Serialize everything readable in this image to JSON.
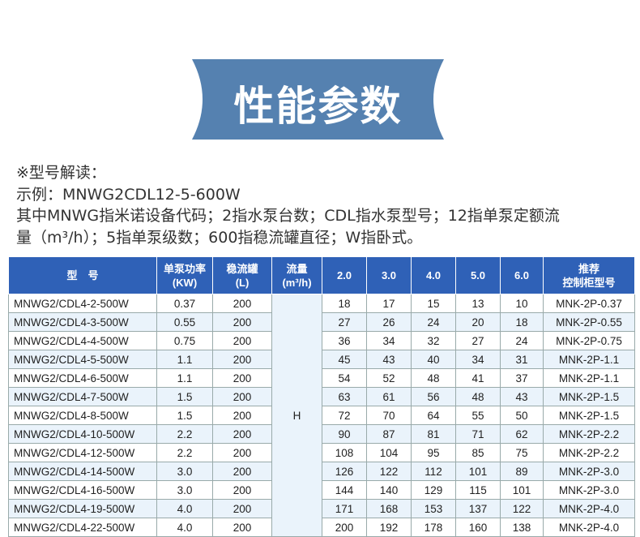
{
  "banner": {
    "title": "性能参数",
    "color": "#5581b0"
  },
  "description": {
    "lines": [
      "※型号解读：",
      "示例：MNWG2CDL12-5-600W",
      "其中MNWG指米诺设备代码；2指水泵台数；CDL指水泵型号；12指单泵定额流",
      "量（m³/h）；5指单泵级数；600指稳流罐直径；W指卧式。"
    ]
  },
  "table": {
    "header_color": "#2f61b7",
    "headers": {
      "model": "型　号",
      "power": "单泵功率",
      "power_unit": "(KW)",
      "tank": "稳流罐",
      "tank_unit": "(L)",
      "flow": "流量",
      "flow_unit": "(m³/h)",
      "f1": "2.0",
      "f2": "3.0",
      "f3": "4.0",
      "f4": "5.0",
      "f5": "6.0",
      "cab1": "推荐",
      "cab2": "控制柜型号"
    },
    "h_label": "H",
    "rows": [
      [
        "MNWG2/CDL4-2-500W",
        "0.37",
        "200",
        "18",
        "17",
        "15",
        "13",
        "10",
        "MNK-2P-0.37"
      ],
      [
        "MNWG2/CDL4-3-500W",
        "0.55",
        "200",
        "27",
        "26",
        "24",
        "20",
        "18",
        "MNK-2P-0.55"
      ],
      [
        "MNWG2/CDL4-4-500W",
        "0.75",
        "200",
        "36",
        "34",
        "32",
        "27",
        "24",
        "MNK-2P-0.75"
      ],
      [
        "MNWG2/CDL4-5-500W",
        "1.1",
        "200",
        "45",
        "43",
        "40",
        "34",
        "31",
        "MNK-2P-1.1"
      ],
      [
        "MNWG2/CDL4-6-500W",
        "1.1",
        "200",
        "54",
        "52",
        "48",
        "41",
        "37",
        "MNK-2P-1.1"
      ],
      [
        "MNWG2/CDL4-7-500W",
        "1.5",
        "200",
        "63",
        "61",
        "56",
        "48",
        "43",
        "MNK-2P-1.5"
      ],
      [
        "MNWG2/CDL4-8-500W",
        "1.5",
        "200",
        "72",
        "70",
        "64",
        "55",
        "50",
        "MNK-2P-1.5"
      ],
      [
        "MNWG2/CDL4-10-500W",
        "2.2",
        "200",
        "90",
        "87",
        "81",
        "71",
        "62",
        "MNK-2P-2.2"
      ],
      [
        "MNWG2/CDL4-12-500W",
        "2.2",
        "200",
        "108",
        "104",
        "95",
        "85",
        "75",
        "MNK-2P-2.2"
      ],
      [
        "MNWG2/CDL4-14-500W",
        "3.0",
        "200",
        "126",
        "122",
        "112",
        "101",
        "89",
        "MNK-2P-3.0"
      ],
      [
        "MNWG2/CDL4-16-500W",
        "3.0",
        "200",
        "144",
        "140",
        "129",
        "115",
        "101",
        "MNK-2P-3.0"
      ],
      [
        "MNWG2/CDL4-19-500W",
        "4.0",
        "200",
        "171",
        "168",
        "153",
        "137",
        "122",
        "MNK-2P-4.0"
      ],
      [
        "MNWG2/CDL4-22-500W",
        "4.0",
        "200",
        "200",
        "192",
        "178",
        "160",
        "138",
        "MNK-2P-4.0"
      ]
    ]
  }
}
